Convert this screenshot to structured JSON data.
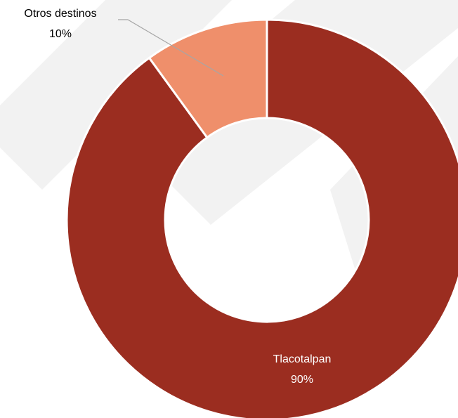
{
  "chart_data": {
    "type": "pie",
    "donut": true,
    "categories": [
      "Tlacotalpan",
      "Otros destinos"
    ],
    "values": [
      90,
      10
    ],
    "value_labels": [
      "90%",
      "10%"
    ],
    "colors": [
      "#9b2d20",
      "#ef8f6b"
    ],
    "label_colors": [
      "#ffffff",
      "#000000"
    ],
    "title": "",
    "legend": "none"
  }
}
